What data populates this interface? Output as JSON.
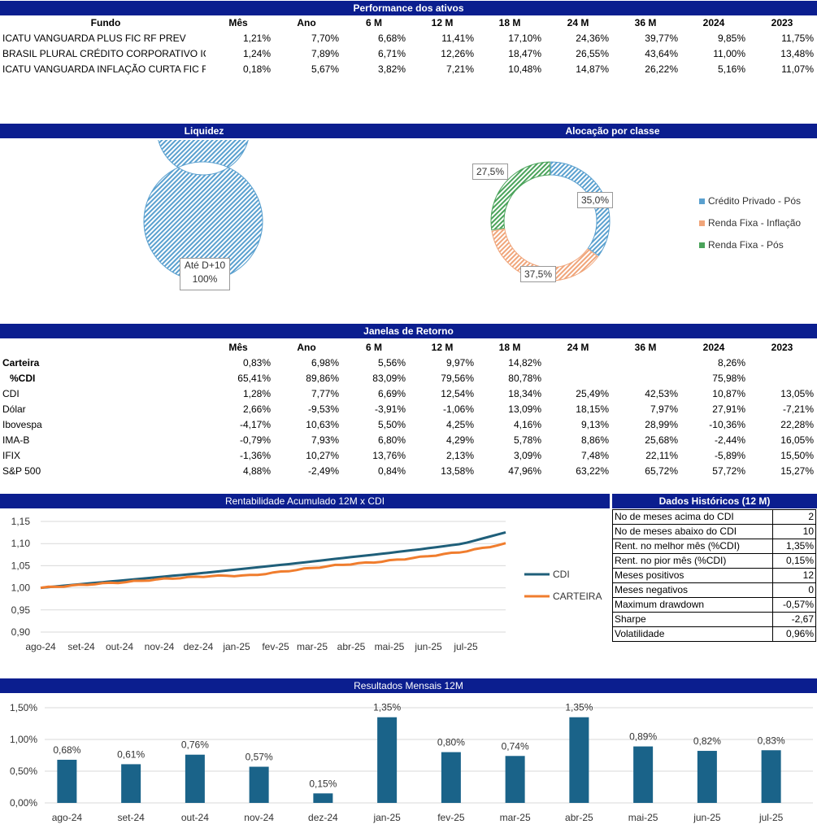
{
  "performance": {
    "title": "Performance dos ativos",
    "headers": [
      "Fundo",
      "Mês",
      "Ano",
      "6 M",
      "12 M",
      "18 M",
      "24 M",
      "36 M",
      "2024",
      "2023"
    ],
    "rows": [
      [
        "ICATU VANGUARDA PLUS FIC RF PREV",
        "1,21%",
        "7,70%",
        "6,68%",
        "11,41%",
        "17,10%",
        "24,36%",
        "39,77%",
        "9,85%",
        "11,75%"
      ],
      [
        "BRASIL PLURAL CRÉDITO CORPORATIVO ICA",
        "1,24%",
        "7,89%",
        "6,71%",
        "12,26%",
        "18,47%",
        "26,55%",
        "43,64%",
        "11,00%",
        "13,48%"
      ],
      [
        "ICATU VANGUARDA INFLAÇÃO CURTA FIC R",
        "0,18%",
        "5,67%",
        "3,82%",
        "7,21%",
        "10,48%",
        "14,87%",
        "26,22%",
        "5,16%",
        "11,07%"
      ]
    ]
  },
  "liquidez": {
    "title": "Liquidez",
    "label_line1": "Até D+10",
    "label_line2": "100%"
  },
  "alocacao": {
    "title": "Alocação por classe",
    "legend": [
      "Crédito Privado - Pós",
      "Renda Fixa - Inflação",
      "Renda Fixa - Pós"
    ]
  },
  "janelas": {
    "title": "Janelas de Retorno",
    "headers": [
      "",
      "Mês",
      "Ano",
      "6 M",
      "12 M",
      "18 M",
      "24 M",
      "36 M",
      "2024",
      "2023"
    ],
    "rows": [
      [
        "Carteira",
        "0,83%",
        "6,98%",
        "5,56%",
        "9,97%",
        "14,82%",
        "",
        "",
        "8,26%",
        ""
      ],
      [
        "%CDI",
        "65,41%",
        "89,86%",
        "83,09%",
        "79,56%",
        "80,78%",
        "",
        "",
        "75,98%",
        ""
      ],
      [
        "CDI",
        "1,28%",
        "7,77%",
        "6,69%",
        "12,54%",
        "18,34%",
        "25,49%",
        "42,53%",
        "10,87%",
        "13,05%"
      ],
      [
        "Dólar",
        "2,66%",
        "-9,53%",
        "-3,91%",
        "-1,06%",
        "13,09%",
        "18,15%",
        "7,97%",
        "27,91%",
        "-7,21%"
      ],
      [
        "Ibovespa",
        "-4,17%",
        "10,63%",
        "5,50%",
        "4,25%",
        "4,16%",
        "9,13%",
        "28,99%",
        "-10,36%",
        "22,28%"
      ],
      [
        "IMA-B",
        "-0,79%",
        "7,93%",
        "6,80%",
        "4,29%",
        "5,78%",
        "8,86%",
        "25,68%",
        "-2,44%",
        "16,05%"
      ],
      [
        "IFIX",
        "-1,36%",
        "10,27%",
        "13,76%",
        "2,13%",
        "3,09%",
        "7,48%",
        "22,11%",
        "-5,89%",
        "15,50%"
      ],
      [
        "S&P 500",
        "4,88%",
        "-2,49%",
        "0,84%",
        "13,58%",
        "47,96%",
        "63,22%",
        "65,72%",
        "57,72%",
        "15,27%"
      ]
    ]
  },
  "dados_historicos": {
    "title": "Dados Históricos (12 M)",
    "rows": [
      [
        "No de meses acima do CDI",
        "2"
      ],
      [
        "No de meses abaixo do CDI",
        "10"
      ],
      [
        "Rent. no melhor mês (%CDI)",
        "1,35%"
      ],
      [
        "Rent. no pior mês (%CDI)",
        "0,15%"
      ],
      [
        "Meses positivos",
        "12"
      ],
      [
        "Meses negativos",
        "0"
      ],
      [
        "Maximum drawdown",
        "-0,57%"
      ],
      [
        "Sharpe",
        "-2,67"
      ],
      [
        "Volatilidade",
        "0,96%"
      ]
    ]
  },
  "colors": {
    "band": "#0b1e8f",
    "cdi_line": "#1f5f7a",
    "carteira_line": "#f07d2e",
    "bar": "#1a6389",
    "donut_blue": "#5aa0cf",
    "donut_orange": "#f0a57a",
    "donut_green": "#4aa35a"
  },
  "chart_data": [
    {
      "type": "pie",
      "title": "Liquidez",
      "categories": [
        "Até D+10"
      ],
      "values": [
        100
      ],
      "data_labels": [
        "Até D+10 100%"
      ]
    },
    {
      "type": "pie",
      "title": "Alocação por classe",
      "categories": [
        "Crédito Privado - Pós",
        "Renda Fixa - Inflação",
        "Renda Fixa - Pós"
      ],
      "values": [
        35.0,
        37.5,
        27.5
      ],
      "data_labels": [
        "35,0%",
        "37,5%",
        "27,5%"
      ],
      "legend": "right"
    },
    {
      "type": "line",
      "title": "Rentabilidade Acumulado 12M x CDI",
      "x": [
        "ago-24",
        "set-24",
        "out-24",
        "nov-24",
        "dez-24",
        "jan-25",
        "fev-25",
        "mar-25",
        "abr-25",
        "mai-25",
        "jun-25",
        "jul-25"
      ],
      "ylim": [
        0.9,
        1.15
      ],
      "yticks": [
        "0,90",
        "0,95",
        "1,00",
        "1,05",
        "1,10",
        "1,15"
      ],
      "series": [
        {
          "name": "CDI",
          "values": [
            1.0,
            1.0087,
            1.0173,
            1.0261,
            1.0349,
            1.045,
            1.0549,
            1.0658,
            1.0761,
            1.0874,
            1.0998,
            1.1254
          ]
        },
        {
          "name": "CARTEIRA",
          "values": [
            1.0,
            1.0068,
            1.013,
            1.0207,
            1.0265,
            1.028,
            1.04,
            1.051,
            1.0588,
            1.0695,
            1.0816,
            1.0997
          ]
        }
      ],
      "legend": "right"
    },
    {
      "type": "bar",
      "title": "Resultados Mensais 12M",
      "categories": [
        "ago-24",
        "set-24",
        "out-24",
        "nov-24",
        "dez-24",
        "jan-25",
        "fev-25",
        "mar-25",
        "abr-25",
        "mai-25",
        "jun-25",
        "jul-25"
      ],
      "values": [
        0.68,
        0.61,
        0.76,
        0.57,
        0.15,
        1.35,
        0.8,
        0.74,
        1.35,
        0.89,
        0.82,
        0.83
      ],
      "data_labels": [
        "0,68%",
        "0,61%",
        "0,76%",
        "0,57%",
        "0,15%",
        "1,35%",
        "0,80%",
        "0,74%",
        "1,35%",
        "0,89%",
        "0,82%",
        "0,83%"
      ],
      "ylim": [
        0,
        1.5
      ],
      "yticks": [
        "0,00%",
        "0,50%",
        "1,00%",
        "1,50%"
      ]
    }
  ]
}
